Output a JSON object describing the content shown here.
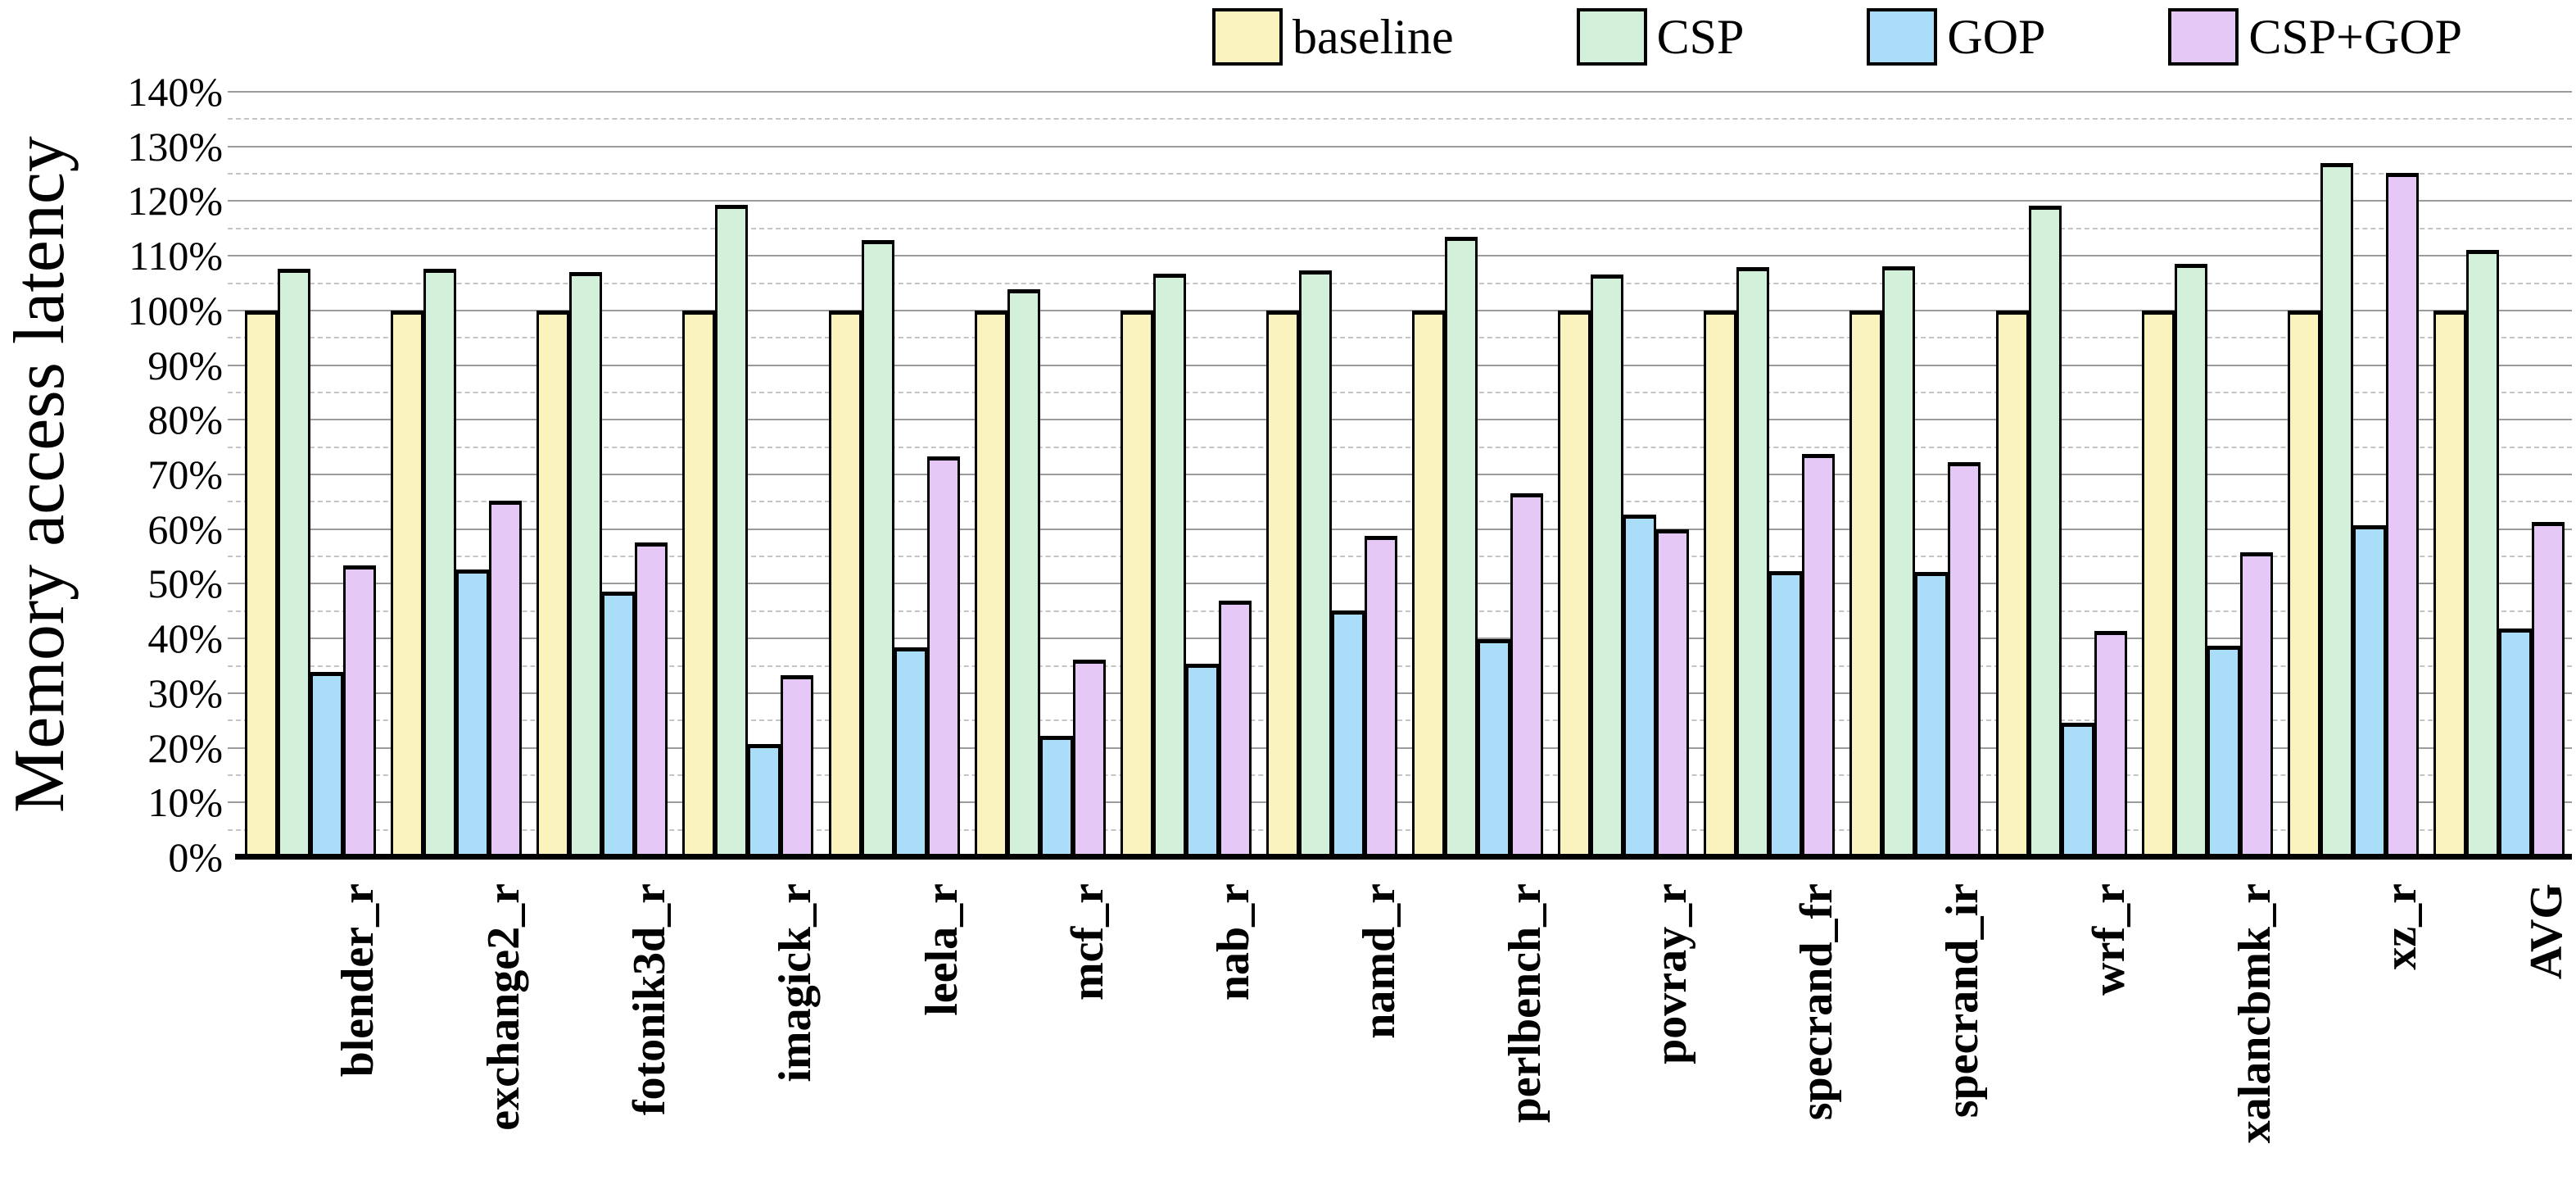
{
  "chart_data": {
    "type": "bar",
    "title": "",
    "xlabel": "",
    "ylabel": "Memory access latency",
    "ylim": [
      0,
      140
    ],
    "y_tick_step_pct": 10,
    "y_ticks": [
      "0%",
      "10%",
      "20%",
      "30%",
      "40%",
      "50%",
      "60%",
      "70%",
      "80%",
      "90%",
      "100%",
      "110%",
      "120%",
      "130%",
      "140%"
    ],
    "grid": {
      "major": "solid horizontal every 10%",
      "minor": "dashed horizontal every 5%",
      "major_color": "#9b9b9b",
      "minor_color": "#c4c4c4"
    },
    "legend_position": "top",
    "axis_color": "#000000",
    "bar_border_color": "#000000",
    "categories": [
      "blender_r",
      "exchange2_r",
      "fotonik3d_r",
      "imagick_r",
      "leela_r",
      "mcf_r",
      "nab_r",
      "namd_r",
      "perlbench_r",
      "povray_r",
      "specrand_fr",
      "specrand_ir",
      "wrf_r",
      "xalancbmk_r",
      "xz_r",
      "AVG"
    ],
    "series": [
      {
        "name": "baseline",
        "color": "#FBF3BD",
        "values": [
          100,
          100,
          100,
          100,
          100,
          100,
          100,
          100,
          100,
          100,
          100,
          100,
          100,
          100,
          100,
          100
        ]
      },
      {
        "name": "CSP",
        "color": "#D2F0DA",
        "values": [
          107.7,
          107.7,
          107.1,
          119.3,
          112.9,
          103.9,
          106.7,
          107.4,
          113.5,
          106.6,
          108.0,
          108.1,
          119.1,
          108.5,
          127.0,
          111.0
        ]
      },
      {
        "name": "GOP",
        "color": "#A9DDF8",
        "values": [
          33.9,
          52.6,
          48.6,
          20.7,
          38.4,
          22.2,
          35.4,
          45.1,
          39.9,
          62.7,
          52.3,
          52.1,
          24.6,
          38.6,
          60.7,
          41.8
        ]
      },
      {
        "name": "CSP+GOP",
        "color": "#E5C8F6",
        "values": [
          53.4,
          65.2,
          57.6,
          33.3,
          73.3,
          36.1,
          46.9,
          58.8,
          66.6,
          60.0,
          73.7,
          72.3,
          41.4,
          55.8,
          125.1,
          61.3
        ]
      }
    ]
  }
}
